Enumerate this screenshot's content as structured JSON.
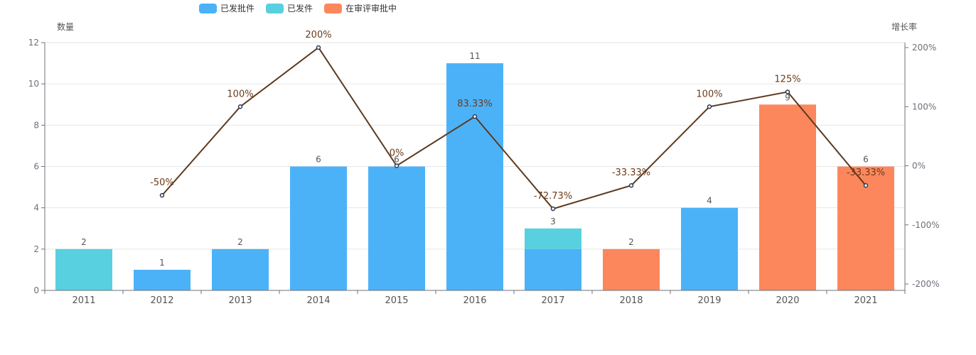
{
  "chart_data": {
    "type": "bar",
    "categories": [
      "2011",
      "2012",
      "2013",
      "2014",
      "2015",
      "2016",
      "2017",
      "2018",
      "2019",
      "2020",
      "2021"
    ],
    "legend": [
      {
        "name": "已发批件",
        "color": "#4cb2f8"
      },
      {
        "name": "已发件",
        "color": "#58d0e0"
      },
      {
        "name": "在审评审批中",
        "color": "#fc875d"
      }
    ],
    "y_left_label": "数量",
    "y_right_label": "增长率",
    "y_left_ticks": [
      "0",
      "2",
      "4",
      "6",
      "8",
      "10",
      "12"
    ],
    "y_left_range": [
      0,
      12
    ],
    "y_right_ticks": [
      "-200%",
      "-100%",
      "0%",
      "100%",
      "200%"
    ],
    "y_right_range": [
      -200,
      200
    ],
    "series": [
      {
        "name": "已发批件",
        "color": "#4cb2f8",
        "stack": "total",
        "values": [
          0,
          1,
          2,
          6,
          6,
          11,
          2,
          0,
          4,
          0,
          0
        ]
      },
      {
        "name": "已发件",
        "color": "#58d0e0",
        "stack": "total",
        "values": [
          2,
          0,
          0,
          0,
          0,
          0,
          1,
          0,
          0,
          0,
          0
        ]
      },
      {
        "name": "在审评审批中",
        "color": "#fc875d",
        "stack": "total",
        "values": [
          0,
          0,
          0,
          0,
          0,
          0,
          0,
          2,
          0,
          9,
          6
        ]
      }
    ],
    "totals": [
      "2",
      "1",
      "2",
      "6",
      "6",
      "11",
      "3",
      "2",
      "4",
      "9",
      "6"
    ],
    "growth": {
      "type": "line",
      "axis": "right",
      "color": "#5c3a1e",
      "values": [
        null,
        -50,
        100,
        200,
        0,
        83.33,
        -72.73,
        -33.33,
        100,
        125,
        -33.33
      ],
      "labels": [
        "",
        "-50%",
        "100%",
        "200%",
        "0%",
        "83.33%",
        "-72.73%",
        "-33.33%",
        "100%",
        "125%",
        "-33.33%"
      ]
    },
    "grid": true,
    "legend_position": "top-center"
  }
}
